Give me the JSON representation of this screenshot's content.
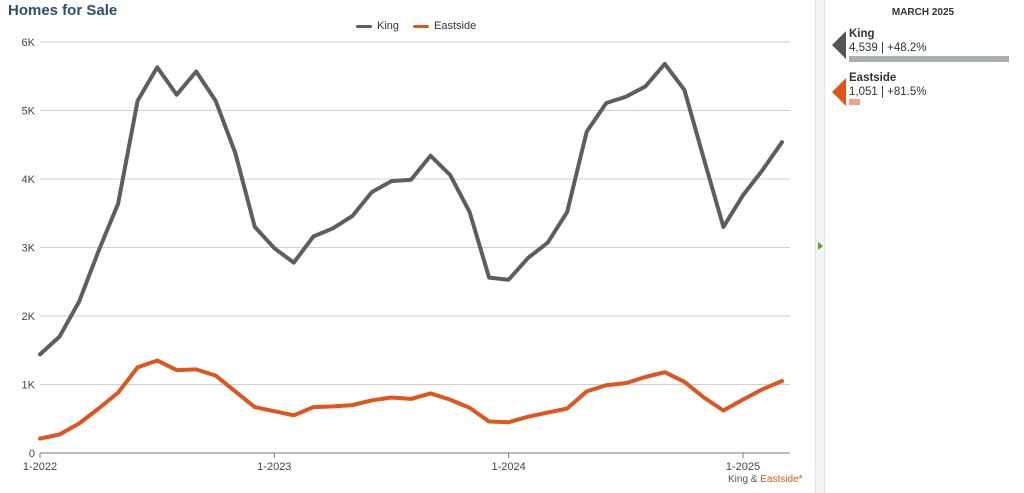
{
  "title": "Homes for Sale",
  "legend": [
    {
      "name": "King",
      "color": "#5a605e"
    },
    {
      "name": "Eastside",
      "color": "#e0541e"
    }
  ],
  "panel": {
    "title": "MARCH 2025",
    "entries": [
      {
        "name": "King",
        "value_text": "4,539 | +48.2%",
        "value": 4539,
        "color": "#5a605e",
        "bar_color": "#aab0ae"
      },
      {
        "name": "Eastside",
        "value_text": "1,051 | +81.5%",
        "value": 1051,
        "color": "#e0541e",
        "bar_color": "#eea487"
      }
    ]
  },
  "footnote": {
    "king": "King",
    "amp": "&",
    "eastside": "Eastside*"
  },
  "chart_data": {
    "type": "line",
    "ylim": [
      0,
      6000
    ],
    "yticks": [
      0,
      1000,
      2000,
      3000,
      4000,
      5000,
      6000
    ],
    "ytick_labels": [
      "0",
      "1K",
      "2K",
      "3K",
      "4K",
      "5K",
      "6K"
    ],
    "xtick_labels": [
      "1-2022",
      "1-2023",
      "1-2024",
      "1-2025"
    ],
    "xtick_index": [
      0,
      12,
      24,
      36
    ],
    "x": [
      "2022-01",
      "2022-02",
      "2022-03",
      "2022-04",
      "2022-05",
      "2022-06",
      "2022-07",
      "2022-08",
      "2022-09",
      "2022-10",
      "2022-11",
      "2022-12",
      "2023-01",
      "2023-02",
      "2023-03",
      "2023-04",
      "2023-05",
      "2023-06",
      "2023-07",
      "2023-08",
      "2023-09",
      "2023-10",
      "2023-11",
      "2023-12",
      "2024-01",
      "2024-02",
      "2024-03",
      "2024-04",
      "2024-05",
      "2024-06",
      "2024-07",
      "2024-08",
      "2024-09",
      "2024-10",
      "2024-11",
      "2024-12",
      "2025-01",
      "2025-02",
      "2025-03"
    ],
    "series": [
      {
        "name": "King",
        "color": "#5a605e",
        "values": [
          1440,
          1700,
          2210,
          2950,
          3640,
          5140,
          5630,
          5230,
          5570,
          5140,
          4380,
          3300,
          2990,
          2780,
          3160,
          3280,
          3460,
          3810,
          3970,
          3990,
          4340,
          4060,
          3520,
          2560,
          2530,
          2850,
          3070,
          3520,
          4690,
          5110,
          5200,
          5350,
          5680,
          5300,
          4290,
          3300,
          3760,
          4130,
          4539
        ]
      },
      {
        "name": "Eastside",
        "color": "#e0541e",
        "values": [
          210,
          270,
          430,
          650,
          880,
          1250,
          1350,
          1210,
          1220,
          1130,
          900,
          670,
          610,
          550,
          670,
          680,
          700,
          770,
          810,
          790,
          870,
          780,
          660,
          460,
          450,
          530,
          590,
          650,
          900,
          990,
          1020,
          1110,
          1180,
          1040,
          810,
          620,
          780,
          930,
          1051
        ]
      }
    ]
  }
}
